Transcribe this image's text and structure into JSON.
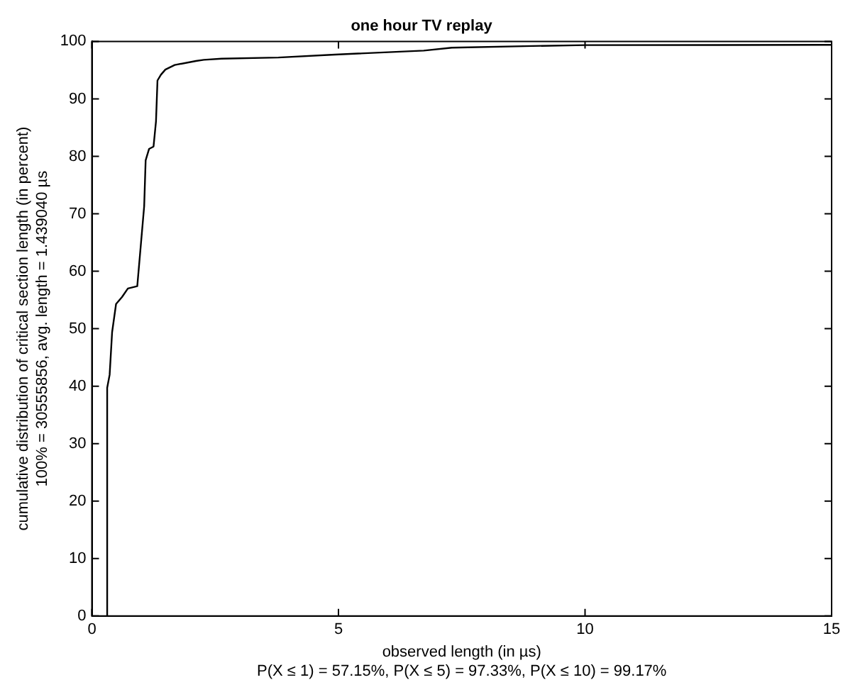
{
  "chart_data": {
    "type": "line",
    "title": "one hour TV replay",
    "xlabel": "observed length (in µs)",
    "ylabel": "cumulative distribution of critical section length (in percent)\n100% = 30555856, avg. length = 1.439040 µs",
    "annotations": [
      "P(X ≤ 1) = 57.15%, P(X ≤ 5) = 97.33%, P(X ≤ 10) = 99.17%"
    ],
    "x": [
      0.31,
      0.31,
      0.36,
      0.41,
      0.49,
      0.61,
      0.73,
      0.92,
      1.06,
      1.09,
      1.16,
      1.25,
      1.3,
      1.33,
      1.4,
      1.49,
      1.68,
      2.11,
      2.27,
      2.63,
      3.78,
      4.93,
      6.73,
      7.3,
      8.94,
      10,
      14.87,
      15
    ],
    "series": [
      {
        "color": "#000000",
        "values": [
          0,
          39.7,
          42,
          49.4,
          54.3,
          55.5,
          57,
          57.4,
          71.3,
          79.3,
          81.3,
          81.7,
          86.1,
          93.2,
          94.2,
          95.1,
          95.9,
          96.6,
          96.8,
          97,
          97.2,
          97.7,
          98.4,
          98.9,
          99.2,
          99.35,
          99.4,
          99.4
        ]
      }
    ],
    "xlim": [
      0,
      15
    ],
    "xticks": [
      0,
      5,
      10,
      15
    ],
    "ylim": [
      0,
      100
    ],
    "yticks": [
      0,
      10,
      20,
      30,
      40,
      50,
      60,
      70,
      80,
      90,
      100
    ],
    "grid": false,
    "legend": false,
    "marker": "none",
    "line_style": "solid"
  }
}
